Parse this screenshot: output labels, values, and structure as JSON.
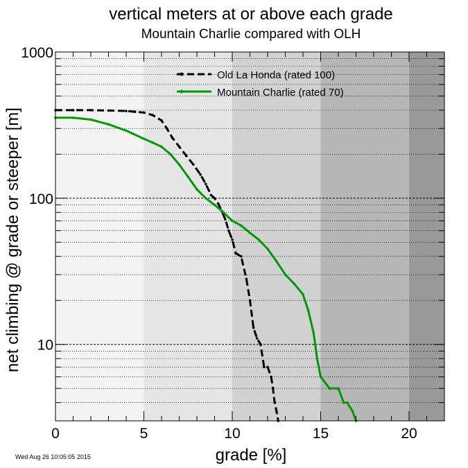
{
  "chart_data": {
    "type": "line",
    "title": "vertical meters at or above each grade",
    "subtitle": "Mountain Charlie compared with OLH",
    "xlabel": "grade [%]",
    "ylabel": "net climbing @ grade or steeper [m]",
    "xlim": [
      0,
      22
    ],
    "ylim": [
      3,
      1000
    ],
    "yscale": "log",
    "x_ticks": [
      0,
      5,
      10,
      15,
      20
    ],
    "y_ticks": [
      10,
      100,
      1000
    ],
    "grid": "horizontal dotted",
    "legend_position": "top-center",
    "background_bands": [
      {
        "from": 0,
        "to": 5,
        "color": "#f3f3f3"
      },
      {
        "from": 5,
        "to": 10,
        "color": "#e5e5e5"
      },
      {
        "from": 10,
        "to": 15,
        "color": "#d1d1d1"
      },
      {
        "from": 15,
        "to": 20,
        "color": "#b6b6b6"
      },
      {
        "from": 20,
        "to": 22,
        "color": "#999999"
      }
    ],
    "series": [
      {
        "name": "Old La Honda (rated 100)",
        "color": "#000000",
        "dash": "10,5",
        "x": [
          0,
          1,
          2,
          3,
          4,
          4.5,
          5,
          5.5,
          6,
          6.3,
          6.6,
          7,
          7.4,
          7.8,
          8.2,
          8.5,
          8.8,
          9.0,
          9.2,
          9.4,
          9.6,
          9.8,
          10.0,
          10.2,
          10.5,
          10.8,
          11.0,
          11.2,
          11.4,
          11.6,
          11.8,
          12.0,
          12.2,
          12.3,
          12.4,
          12.5,
          12.6
        ],
        "values": [
          400,
          400,
          400,
          398,
          395,
          390,
          385,
          370,
          340,
          300,
          260,
          225,
          195,
          170,
          145,
          125,
          105,
          100,
          92,
          82,
          72,
          60,
          52,
          42,
          40,
          28,
          20,
          13,
          11,
          10,
          7,
          7,
          6,
          5,
          4,
          3.5,
          3
        ]
      },
      {
        "name": "Mountain Charlie (rated 70)",
        "color": "#009900",
        "dash": "",
        "x": [
          0,
          1,
          2,
          3,
          4,
          5,
          5.5,
          6,
          6.5,
          7,
          7.5,
          8,
          8.5,
          9,
          9.5,
          10,
          10.5,
          11,
          11.5,
          12,
          12.5,
          13,
          13.5,
          14,
          14.3,
          14.6,
          14.8,
          15,
          15.5,
          16,
          16.3,
          16.5,
          16.8,
          17
        ],
        "values": [
          355,
          355,
          345,
          320,
          290,
          255,
          240,
          225,
          200,
          170,
          140,
          115,
          100,
          90,
          80,
          70,
          65,
          58,
          52,
          45,
          37,
          30,
          26,
          22,
          17,
          12,
          8,
          6,
          5,
          5,
          4,
          4,
          3.5,
          3
        ]
      }
    ]
  },
  "timestamp": "Wed Aug 26 10:05:05 2015"
}
